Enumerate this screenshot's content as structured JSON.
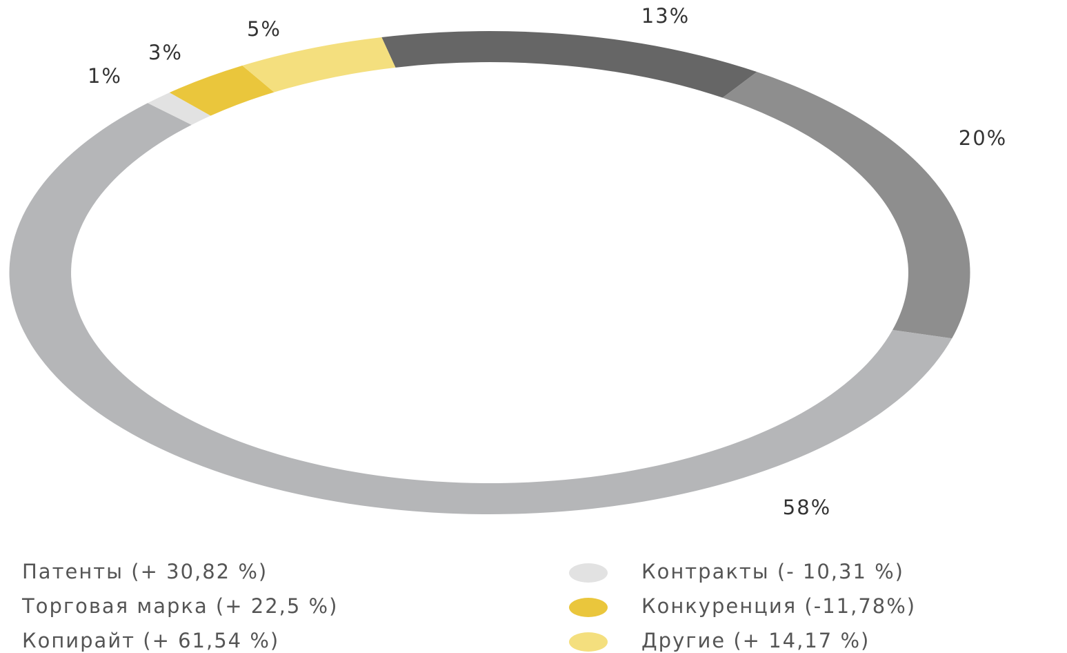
{
  "chart_data": {
    "type": "donut",
    "categories": [
      "Патенты (+ 30,82 %)",
      "Торговая марка (+ 22,5 %)",
      "Копирайт (+ 61,54 %)",
      "Контракты (- 10,31 %)",
      "Конкуренция (-11,78%)",
      "Другие (+ 14,17 %)"
    ],
    "values": [
      13,
      20,
      58,
      1,
      3,
      5
    ],
    "value_labels": [
      "13%",
      "20%",
      "58%",
      "1%",
      "3%",
      "5%"
    ],
    "colors": [
      "#666666",
      "#8e8e8e",
      "#b5b6b8",
      "#e2e2e2",
      "#eac63c",
      "#f4df7e"
    ]
  }
}
